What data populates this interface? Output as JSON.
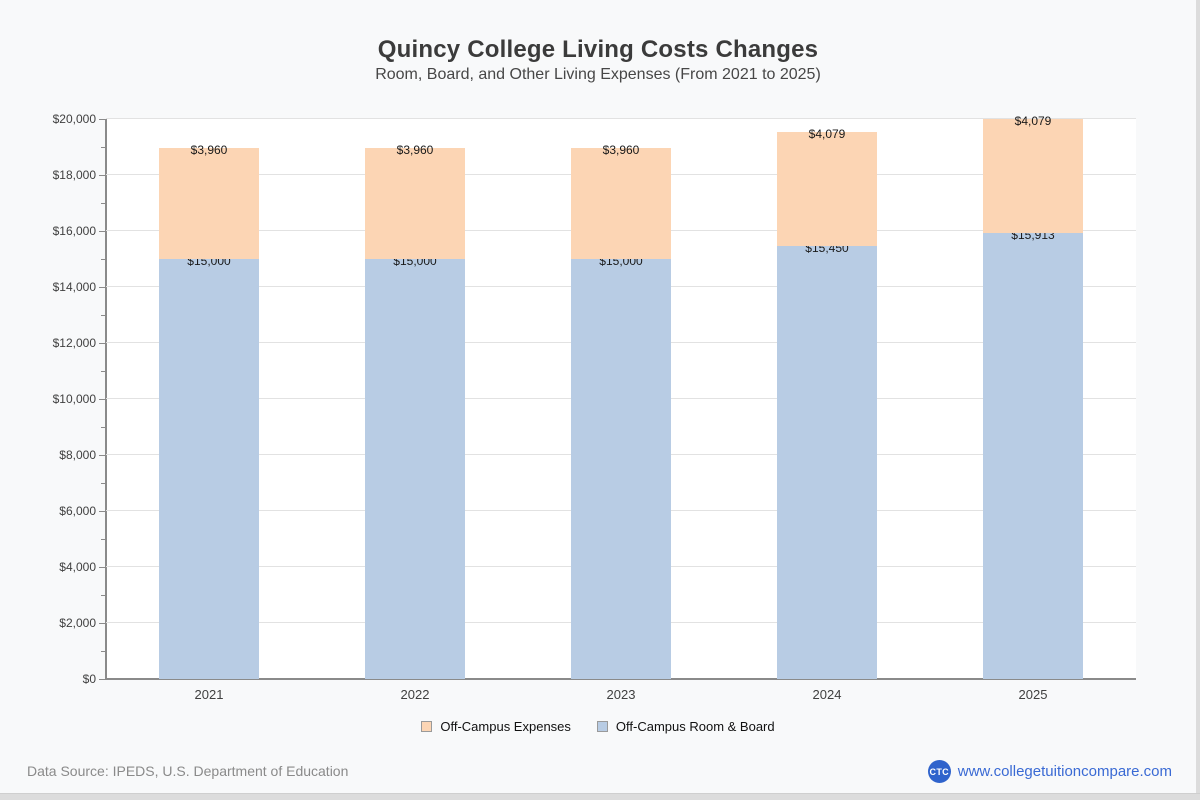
{
  "page": {
    "title": "Quincy College Living Costs Changes",
    "subtitle": "Room, Board, and Other Living Expenses (From 2021 to 2025)",
    "footer": {
      "data_source": "Data Source: IPEDS, U.S. Department of Education",
      "site_badge": "CTC",
      "site_label": "www.collegetuitioncompare.com"
    }
  },
  "colors": {
    "expenses": "#FCD5B4",
    "room_board": "#B8CCE4",
    "axis": "#8a8a8a",
    "gridline": "#e2e2e2",
    "link_blue": "#3a6ad4",
    "badge_blue": "#2f63cc"
  },
  "chart_data": {
    "type": "bar",
    "stacked": true,
    "title": "Quincy College Living Costs Changes",
    "subtitle": "Room, Board, and Other Living Expenses (From 2021 to 2025)",
    "categories": [
      "2021",
      "2022",
      "2023",
      "2024",
      "2025"
    ],
    "series": [
      {
        "name": "Off-Campus Room & Board",
        "color_key": "room_board",
        "values": [
          15000,
          15000,
          15000,
          15450,
          15913
        ],
        "labels": [
          "$15,000",
          "$15,000",
          "$15,000",
          "$15,450",
          "$15,913"
        ]
      },
      {
        "name": "Off-Campus Expenses",
        "color_key": "expenses",
        "values": [
          3960,
          3960,
          3960,
          4079,
          4079
        ],
        "labels": [
          "$3,960",
          "$3,960",
          "$3,960",
          "$4,079",
          "$4,079"
        ]
      }
    ],
    "ylim": [
      0,
      20000
    ],
    "ytick_step": 2000,
    "ytick_minor_step": 1000,
    "ytick_labels": [
      "$0",
      "$2,000",
      "$4,000",
      "$6,000",
      "$8,000",
      "$10,000",
      "$12,000",
      "$14,000",
      "$16,000",
      "$18,000",
      "$20,000"
    ],
    "grid": true,
    "legend_position": "bottom",
    "legend_items": [
      {
        "label": "Off-Campus Expenses",
        "color_key": "expenses"
      },
      {
        "label": "Off-Campus Room & Board",
        "color_key": "room_board"
      }
    ]
  }
}
